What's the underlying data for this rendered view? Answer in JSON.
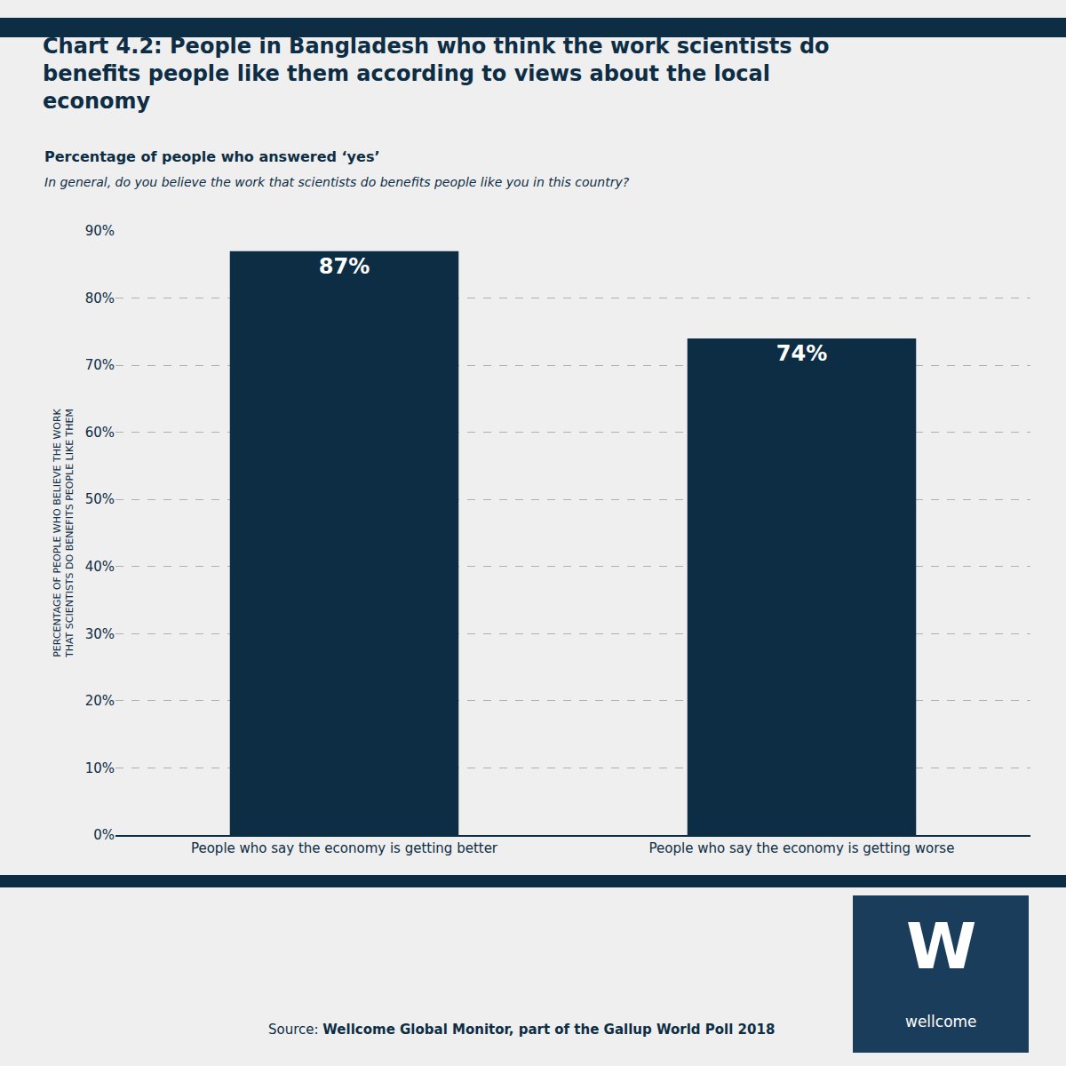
{
  "chart_data": {
    "type": "bar",
    "title": "Chart 4.2: People in Bangladesh who think the work scientists do\nbenefits people like them according to views about the local\neconomy",
    "subtitle": [
      "Percentage of people who answered ‘yes’",
      "In general, do you believe the work that scientists do benefits people like you in this country?"
    ],
    "categories": [
      "People who say the economy is getting better",
      "People who say the economy is getting worse"
    ],
    "values": [
      87,
      74
    ],
    "value_labels": [
      "87%",
      "74%"
    ],
    "data_labels": true,
    "color": "#0d2d45",
    "ylabel": "PERCENTAGE OF PEOPLE WHO BELIEVE THE WORK\nTHAT SCIENTISTS DO BENEFITS PEOPLE LIKE THEM",
    "ylim": [
      0,
      90
    ],
    "yticks": [
      {
        "value": 0,
        "label": "0%"
      },
      {
        "value": 10,
        "label": "10%"
      },
      {
        "value": 20,
        "label": "20%"
      },
      {
        "value": 30,
        "label": "30%"
      },
      {
        "value": 40,
        "label": "40%"
      },
      {
        "value": 50,
        "label": "50%"
      },
      {
        "value": 60,
        "label": "60%"
      },
      {
        "value": 70,
        "label": "70%"
      },
      {
        "value": 80,
        "label": "80%"
      },
      {
        "value": 90,
        "label": "90%"
      }
    ],
    "grid": true,
    "annotations": [
      "Source: ",
      "Wellcome Global Monitor, part of the Gallup World Poll 2018",
      "W",
      "wellcome"
    ]
  }
}
